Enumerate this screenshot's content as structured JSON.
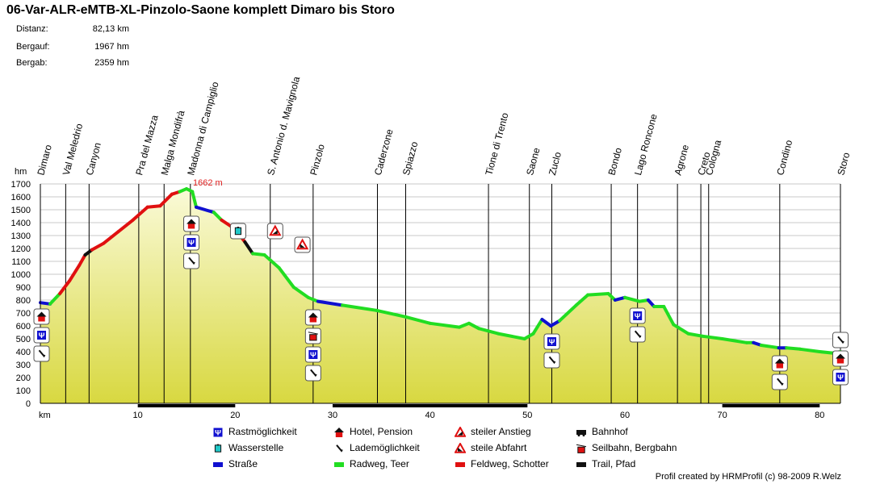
{
  "header": {
    "title": "06-Var-ALR-eMTB-XL-Pinzolo-Saone komplett Dimaro bis Storo",
    "stats": [
      {
        "label": "Distanz:",
        "value": "82,13 km"
      },
      {
        "label": "Bergauf:",
        "value": "1967 hm"
      },
      {
        "label": "Bergab:",
        "value": "2359 hm"
      }
    ]
  },
  "colors": {
    "road": "#1010d0",
    "bike_path": "#22dd22",
    "gravel": "#e01010",
    "trail": "#111111",
    "fill_top": "#fafad8",
    "fill_bottom": "#d8d840"
  },
  "chart_data": {
    "type": "area",
    "title": "06-Var-ALR-eMTB-XL-Pinzolo-Saone komplett Dimaro bis Storo",
    "xlabel": "km",
    "ylabel": "hm",
    "xlim": [
      0,
      82.13
    ],
    "ylim": [
      0,
      1700
    ],
    "x_ticks": [
      10,
      20,
      30,
      40,
      50,
      60,
      70,
      80
    ],
    "y_ticks": [
      0,
      100,
      200,
      300,
      400,
      500,
      600,
      700,
      800,
      900,
      1000,
      1100,
      1200,
      1300,
      1400,
      1500,
      1600,
      1700
    ],
    "max_label": "1662 m",
    "profile": [
      {
        "km": 0,
        "ele": 780,
        "surface": "road"
      },
      {
        "km": 1.0,
        "ele": 770,
        "surface": "bike_path"
      },
      {
        "km": 2.0,
        "ele": 850,
        "surface": "gravel"
      },
      {
        "km": 3.0,
        "ele": 950,
        "surface": "gravel"
      },
      {
        "km": 4.0,
        "ele": 1070,
        "surface": "gravel"
      },
      {
        "km": 4.6,
        "ele": 1150,
        "surface": "trail"
      },
      {
        "km": 5.3,
        "ele": 1190,
        "surface": "gravel"
      },
      {
        "km": 6.5,
        "ele": 1240,
        "surface": "gravel"
      },
      {
        "km": 8.0,
        "ele": 1330,
        "surface": "gravel"
      },
      {
        "km": 9.5,
        "ele": 1420,
        "surface": "gravel"
      },
      {
        "km": 11.0,
        "ele": 1520,
        "surface": "gravel"
      },
      {
        "km": 12.3,
        "ele": 1530,
        "surface": "gravel"
      },
      {
        "km": 13.5,
        "ele": 1620,
        "surface": "gravel"
      },
      {
        "km": 14.3,
        "ele": 1640,
        "surface": "bike_path"
      },
      {
        "km": 15.0,
        "ele": 1662,
        "surface": "bike_path"
      },
      {
        "km": 15.6,
        "ele": 1640,
        "surface": "bike_path"
      },
      {
        "km": 16.0,
        "ele": 1520,
        "surface": "road"
      },
      {
        "km": 17.8,
        "ele": 1480,
        "surface": "bike_path"
      },
      {
        "km": 18.6,
        "ele": 1420,
        "surface": "gravel"
      },
      {
        "km": 20.0,
        "ele": 1350,
        "surface": "gravel"
      },
      {
        "km": 21.0,
        "ele": 1250,
        "surface": "trail"
      },
      {
        "km": 21.8,
        "ele": 1160,
        "surface": "bike_path"
      },
      {
        "km": 23.0,
        "ele": 1150,
        "surface": "bike_path"
      },
      {
        "km": 24.5,
        "ele": 1050,
        "surface": "bike_path"
      },
      {
        "km": 26.0,
        "ele": 900,
        "surface": "bike_path"
      },
      {
        "km": 27.5,
        "ele": 820,
        "surface": "bike_path"
      },
      {
        "km": 28.5,
        "ele": 790,
        "surface": "road"
      },
      {
        "km": 31.0,
        "ele": 760,
        "surface": "bike_path"
      },
      {
        "km": 34.5,
        "ele": 720,
        "surface": "bike_path"
      },
      {
        "km": 37.5,
        "ele": 670,
        "surface": "bike_path"
      },
      {
        "km": 40.0,
        "ele": 620,
        "surface": "bike_path"
      },
      {
        "km": 43.0,
        "ele": 590,
        "surface": "bike_path"
      },
      {
        "km": 44.0,
        "ele": 620,
        "surface": "bike_path"
      },
      {
        "km": 45.0,
        "ele": 580,
        "surface": "bike_path"
      },
      {
        "km": 47.0,
        "ele": 540,
        "surface": "bike_path"
      },
      {
        "km": 49.7,
        "ele": 500,
        "surface": "bike_path"
      },
      {
        "km": 50.6,
        "ele": 540,
        "surface": "bike_path"
      },
      {
        "km": 51.5,
        "ele": 650,
        "surface": "road"
      },
      {
        "km": 52.4,
        "ele": 600,
        "surface": "road"
      },
      {
        "km": 53.3,
        "ele": 640,
        "surface": "bike_path"
      },
      {
        "km": 55.0,
        "ele": 760,
        "surface": "bike_path"
      },
      {
        "km": 56.2,
        "ele": 840,
        "surface": "bike_path"
      },
      {
        "km": 58.3,
        "ele": 850,
        "surface": "bike_path"
      },
      {
        "km": 59.0,
        "ele": 800,
        "surface": "road"
      },
      {
        "km": 60.0,
        "ele": 820,
        "surface": "bike_path"
      },
      {
        "km": 61.5,
        "ele": 790,
        "surface": "bike_path"
      },
      {
        "km": 62.4,
        "ele": 800,
        "surface": "road"
      },
      {
        "km": 63.0,
        "ele": 750,
        "surface": "bike_path"
      },
      {
        "km": 64.0,
        "ele": 750,
        "surface": "bike_path"
      },
      {
        "km": 65.0,
        "ele": 610,
        "surface": "bike_path"
      },
      {
        "km": 66.5,
        "ele": 540,
        "surface": "bike_path"
      },
      {
        "km": 68.0,
        "ele": 520,
        "surface": "bike_path"
      },
      {
        "km": 70.0,
        "ele": 500,
        "surface": "bike_path"
      },
      {
        "km": 72.5,
        "ele": 470,
        "surface": "bike_path"
      },
      {
        "km": 73.2,
        "ele": 470,
        "surface": "road"
      },
      {
        "km": 74.0,
        "ele": 450,
        "surface": "bike_path"
      },
      {
        "km": 75.8,
        "ele": 430,
        "surface": "road"
      },
      {
        "km": 76.6,
        "ele": 430,
        "surface": "bike_path"
      },
      {
        "km": 78.0,
        "ele": 420,
        "surface": "bike_path"
      },
      {
        "km": 80.0,
        "ele": 400,
        "surface": "bike_path"
      },
      {
        "km": 81.3,
        "ele": 390,
        "surface": "bike_path"
      },
      {
        "km": 82.13,
        "ele": 400,
        "surface": "road"
      }
    ],
    "waypoints": [
      {
        "name": "Dimaro",
        "km": 0.0
      },
      {
        "name": "Val Meledrio",
        "km": 2.6
      },
      {
        "name": "Canyon",
        "km": 5.0
      },
      {
        "name": "Pra del Mazza",
        "km": 10.1
      },
      {
        "name": "Malga Mondifrà",
        "km": 12.7
      },
      {
        "name": "Madonna di Campiglio",
        "km": 15.4
      },
      {
        "name": "S. Antonio d. Mavignola",
        "km": 23.6
      },
      {
        "name": "Pinzolo",
        "km": 28.0
      },
      {
        "name": "Caderzone",
        "km": 34.6
      },
      {
        "name": "Spiazzo",
        "km": 37.5
      },
      {
        "name": "Tione di Trento",
        "km": 46.0
      },
      {
        "name": "Saone",
        "km": 50.2
      },
      {
        "name": "Zuclo",
        "km": 52.5
      },
      {
        "name": "Bondo",
        "km": 58.6
      },
      {
        "name": "Lago Roncone",
        "km": 61.3
      },
      {
        "name": "Agrone",
        "km": 65.4
      },
      {
        "name": "Creto",
        "km": 67.8
      },
      {
        "name": "Cologna",
        "km": 68.6
      },
      {
        "name": "Condino",
        "km": 75.9
      },
      {
        "name": "Storo",
        "km": 82.13
      }
    ],
    "markers": [
      {
        "km": 0.0,
        "icons": [
          "hotel",
          "food",
          "charging"
        ]
      },
      {
        "km": 15.5,
        "icons": [
          "hotel",
          "food",
          "charging"
        ]
      },
      {
        "km": 20.3,
        "icons": [
          "water"
        ]
      },
      {
        "km": 24.1,
        "icons": [
          "steep_ascent"
        ]
      },
      {
        "km": 26.9,
        "icons": [
          "steep_descent"
        ]
      },
      {
        "km": 28.0,
        "icons": [
          "hotel",
          "cablecar",
          "food",
          "charging"
        ]
      },
      {
        "km": 52.5,
        "icons": [
          "food",
          "charging"
        ]
      },
      {
        "km": 61.3,
        "icons": [
          "food",
          "charging"
        ]
      },
      {
        "km": 75.9,
        "icons": [
          "hotel",
          "charging"
        ]
      },
      {
        "km": 82.13,
        "icons": [
          "charging",
          "hotel",
          "food"
        ]
      }
    ],
    "surface_bar": [
      {
        "from": 10.0,
        "to": 20.0
      },
      {
        "from": 30.0,
        "to": 50.0
      },
      {
        "from": 70.0,
        "to": 80.0
      }
    ]
  },
  "legend": [
    {
      "icon": "food",
      "label": "Rastmöglichkeit"
    },
    {
      "icon": "hotel",
      "label": "Hotel, Pension"
    },
    {
      "icon": "steep_ascent",
      "label": "steiler Anstieg"
    },
    {
      "icon": "train",
      "label": "Bahnhof"
    },
    {
      "icon": "water",
      "label": "Wasserstelle"
    },
    {
      "icon": "charging",
      "label": "Lademöglichkeit"
    },
    {
      "icon": "steep_descent",
      "label": "steile Abfahrt"
    },
    {
      "icon": "cablecar",
      "label": "Seilbahn, Bergbahn"
    },
    {
      "icon": "road",
      "label": "Straße"
    },
    {
      "icon": "bike_path",
      "label": "Radweg, Teer"
    },
    {
      "icon": "gravel",
      "label": "Feldweg, Schotter"
    },
    {
      "icon": "trail",
      "label": "Trail, Pfad"
    }
  ],
  "credit": "Profil created by HRMProfil (c) 98-2009 R.Welz"
}
